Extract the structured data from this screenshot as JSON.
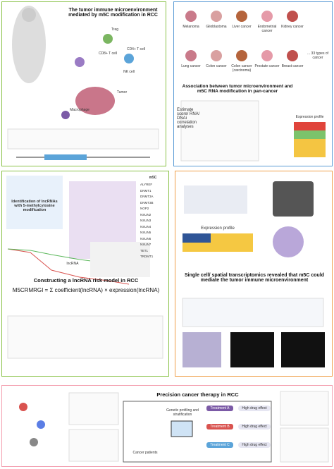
{
  "panel1": {
    "title": "The tumor immune microenvironment mediated by m5C modification in RCC",
    "labels": [
      "Treg",
      "CD4+ T cell",
      "CD8+ T cell",
      "Macrophage",
      "NK cell",
      "Tumor"
    ]
  },
  "panel2": {
    "cancers": [
      "Melanoma",
      "Glioblastoma",
      "Liver cancer",
      "Endometrial cancer",
      "Kidney cancer",
      "Lung cancer",
      "Colon cancer",
      "Colon cancer (carcinoma)",
      "Prostate cancer",
      "Breast cancer"
    ],
    "more": "... 33 types of cancer",
    "title": "Association between tumor microenvironment and m5C RNA modification in pan-cancer",
    "analysis": "Estimate score/ RNA/ DNAi correlation analyses",
    "expression": "Expression profile"
  },
  "panel3": {
    "box": "Identification of lncRNAs with 5-methylcytosine modification",
    "header": "m5C",
    "genes": [
      "ALYREF",
      "DNMT1",
      "DNMT3A",
      "DNMT3B",
      "NOP2",
      "NSUN2",
      "NSUN3",
      "NSUN4",
      "NSUN5",
      "NSUN6",
      "NSUN7",
      "TET1",
      "TRDMT1"
    ],
    "lncrna": "lncRNA",
    "title": "Constructing a lncRNA risk model in RCC",
    "formula": "M5CRMRGI = Σ coefficient(lncRNA) × expression(lncRNA)"
  },
  "panel4": {
    "expression": "Expression profile",
    "title": "Single cell/ spatial transcriptomics revealed that m5C could mediate the tumor immune microenvironment"
  },
  "panel5": {
    "title": "Precision cancer therapy in RCC",
    "patients": "Cancer patients",
    "profiling": "Genetic profiling and stratification",
    "treatments": [
      "Treatment A",
      "Treatment B",
      "Treatment C"
    ],
    "effects": [
      "High drug effect",
      "High drug effect",
      "High drug effect"
    ]
  }
}
